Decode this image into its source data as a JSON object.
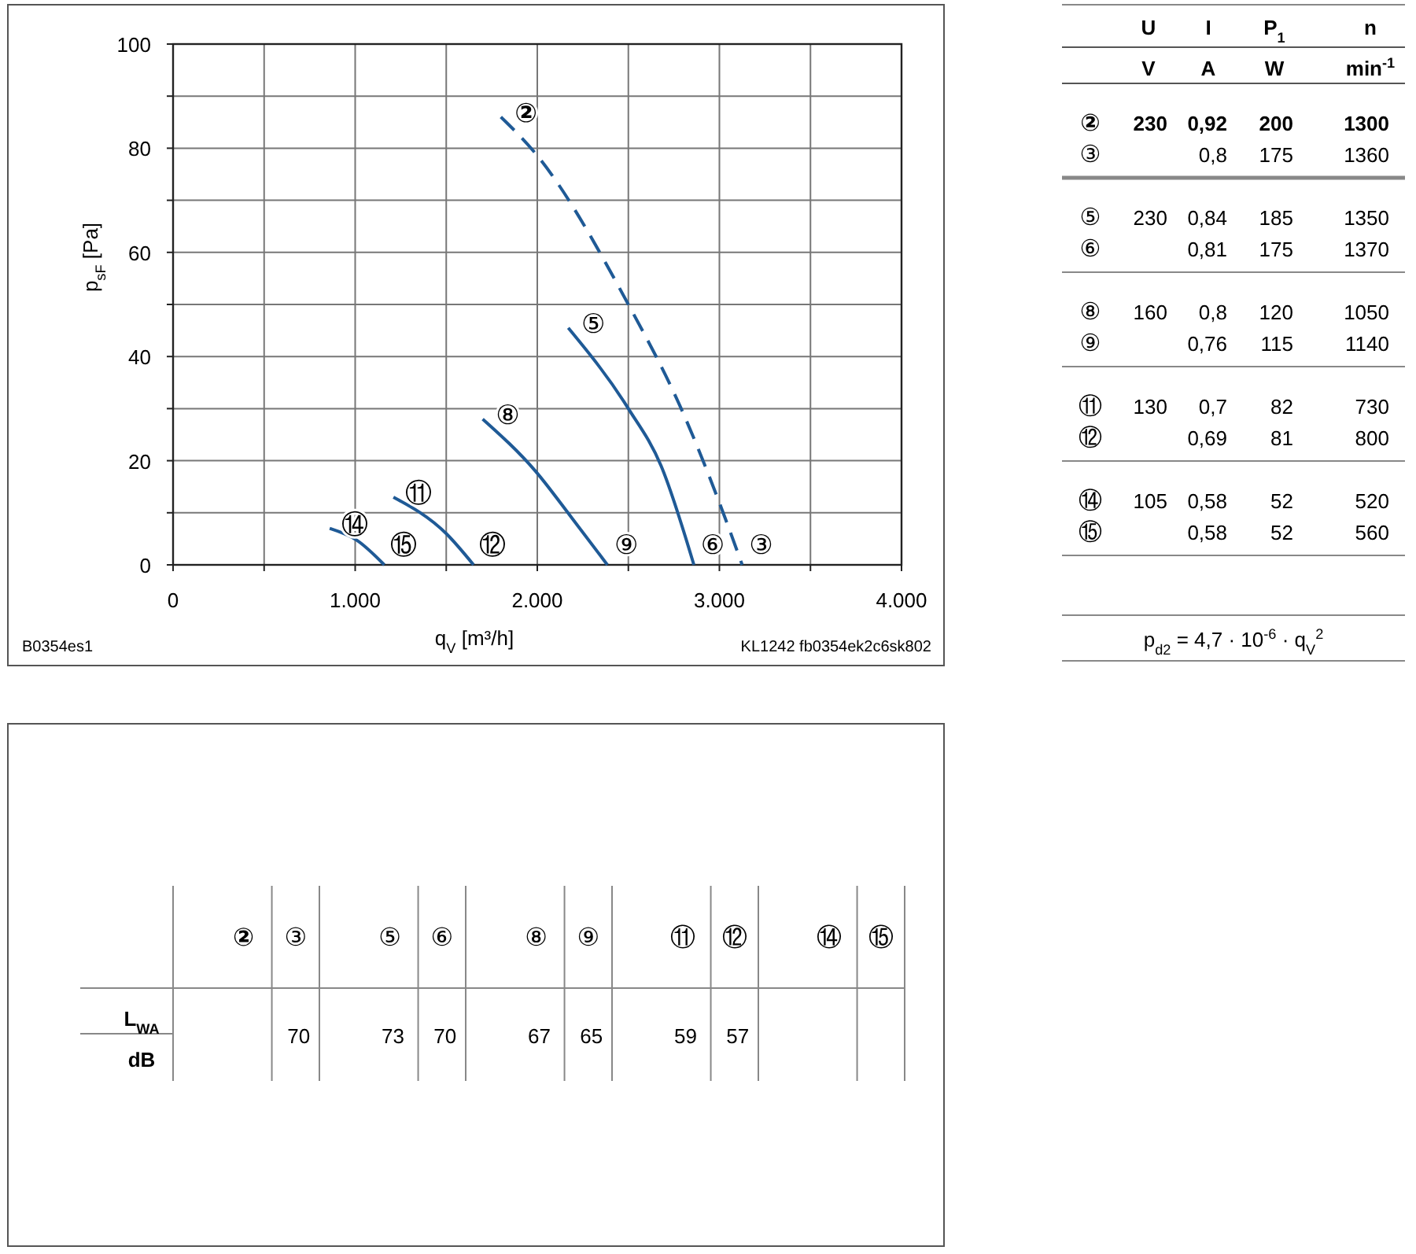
{
  "chart_data": [
    {
      "type": "line",
      "xlabel": "q$_{V}$ [m³/h]",
      "ylabel": "p$_{sF}$ [Pa]",
      "xlim": [
        0,
        4000
      ],
      "ylim": [
        0,
        100
      ],
      "xticks": [
        0,
        {
          "value": 500,
          "label": null
        },
        {
          "value": 1000,
          "label": "1.000"
        },
        {
          "value": 1500,
          "label": null
        },
        {
          "value": 2000,
          "label": "2.000"
        },
        {
          "value": 2500,
          "label": null
        },
        {
          "value": 3000,
          "label": "3.000"
        },
        {
          "value": 3500,
          "label": null
        },
        {
          "value": 4000,
          "label": "4.000"
        }
      ],
      "yticks": [
        0,
        {
          "value": 10,
          "label": null
        },
        20,
        {
          "value": 30,
          "label": null
        },
        40,
        {
          "value": 50,
          "label": null
        },
        60,
        {
          "value": 70,
          "label": null
        },
        80,
        {
          "value": 90,
          "label": null
        },
        100
      ],
      "grid": true,
      "series": [
        {
          "color": "#1f5a96",
          "line_style": "dashed",
          "x": [
            1800,
            1990,
            2500,
            2790,
            3010,
            3125
          ],
          "values": [
            86,
            79,
            50,
            30,
            11,
            0
          ]
        },
        {
          "color": "#1f5a96",
          "line_style": "solid",
          "x": [
            2170,
            2500,
            2680,
            2860
          ],
          "values": [
            45.5,
            30,
            19,
            0
          ]
        },
        {
          "color": "#1f5a96",
          "line_style": "solid",
          "x": [
            1700,
            1990,
            2190,
            2385
          ],
          "values": [
            28,
            18,
            9,
            0
          ]
        },
        {
          "color": "#1f5a96",
          "line_style": "solid",
          "x": [
            1210,
            1500,
            1650
          ],
          "values": [
            13,
            6,
            0
          ]
        },
        {
          "color": "#1f5a96",
          "line_style": "solid",
          "x": [
            860,
            1010,
            1160
          ],
          "values": [
            7,
            4.7,
            0
          ]
        }
      ],
      "annotations": [
        {
          "text": "②",
          "x": 1800,
          "y": 86
        },
        {
          "text": "③",
          "x": 3125,
          "y": 0
        },
        {
          "text": "⑤",
          "x": 2170,
          "y": 45.5
        },
        {
          "text": "⑥",
          "x": 2860,
          "y": 0
        },
        {
          "text": "⑧",
          "x": 1700,
          "y": 28
        },
        {
          "text": "⑨",
          "x": 2385,
          "y": 0
        },
        {
          "text": "⑪",
          "x": 1210,
          "y": 13
        },
        {
          "text": "⑫",
          "x": 1650,
          "y": 0
        },
        {
          "text": "⑭",
          "x": 860,
          "y": 7
        },
        {
          "text": "⑮",
          "x": 1160,
          "y": 0
        },
        "B0354es1",
        "KL1242 fb0354ek2c6sk802"
      ]
    },
    {
      "type": "other",
      "categories": [
        "U",
        "I",
        "P$_{1}$",
        "n"
      ],
      "y_categories": [
        "②",
        "③",
        "⑤",
        "⑥",
        "⑧",
        "⑨",
        "⑪",
        "⑫",
        "⑭",
        "⑮"
      ],
      "cell_labels": [
        [
          "230",
          "0,92",
          "200",
          "1300"
        ],
        [
          null,
          "0,8",
          "175",
          "1360"
        ],
        [
          "230",
          "0,84",
          "185",
          "1350"
        ],
        [
          null,
          "0,81",
          "175",
          "1370"
        ],
        [
          "160",
          "0,8",
          "120",
          "1050"
        ],
        [
          null,
          "0,76",
          "115",
          "1140"
        ],
        [
          "130",
          "0,7",
          "82",
          "730"
        ],
        [
          null,
          "0,69",
          "81",
          "800"
        ],
        [
          "105",
          "0,58",
          "52",
          "520"
        ],
        [
          null,
          "0,58",
          "52",
          "560"
        ]
      ],
      "annotations": [
        "V",
        "A",
        "W",
        "min$^{-1}$",
        "p$_{d2}$ = 4,7 · 10$^{-6}$ · q$_{V}$$^{2}$"
      ]
    },
    {
      "type": "other",
      "ylabel": "L$_{WA}$",
      "categories": [
        "②",
        "③",
        "⑤",
        "⑥",
        "⑧",
        "⑨",
        "⑪",
        "⑫",
        "⑭",
        "⑮"
      ],
      "cell_labels": [
        [
          null,
          "70",
          "73",
          "70",
          "67",
          "65",
          "59",
          "57",
          null,
          null
        ]
      ],
      "annotations": [
        "dB"
      ]
    }
  ]
}
